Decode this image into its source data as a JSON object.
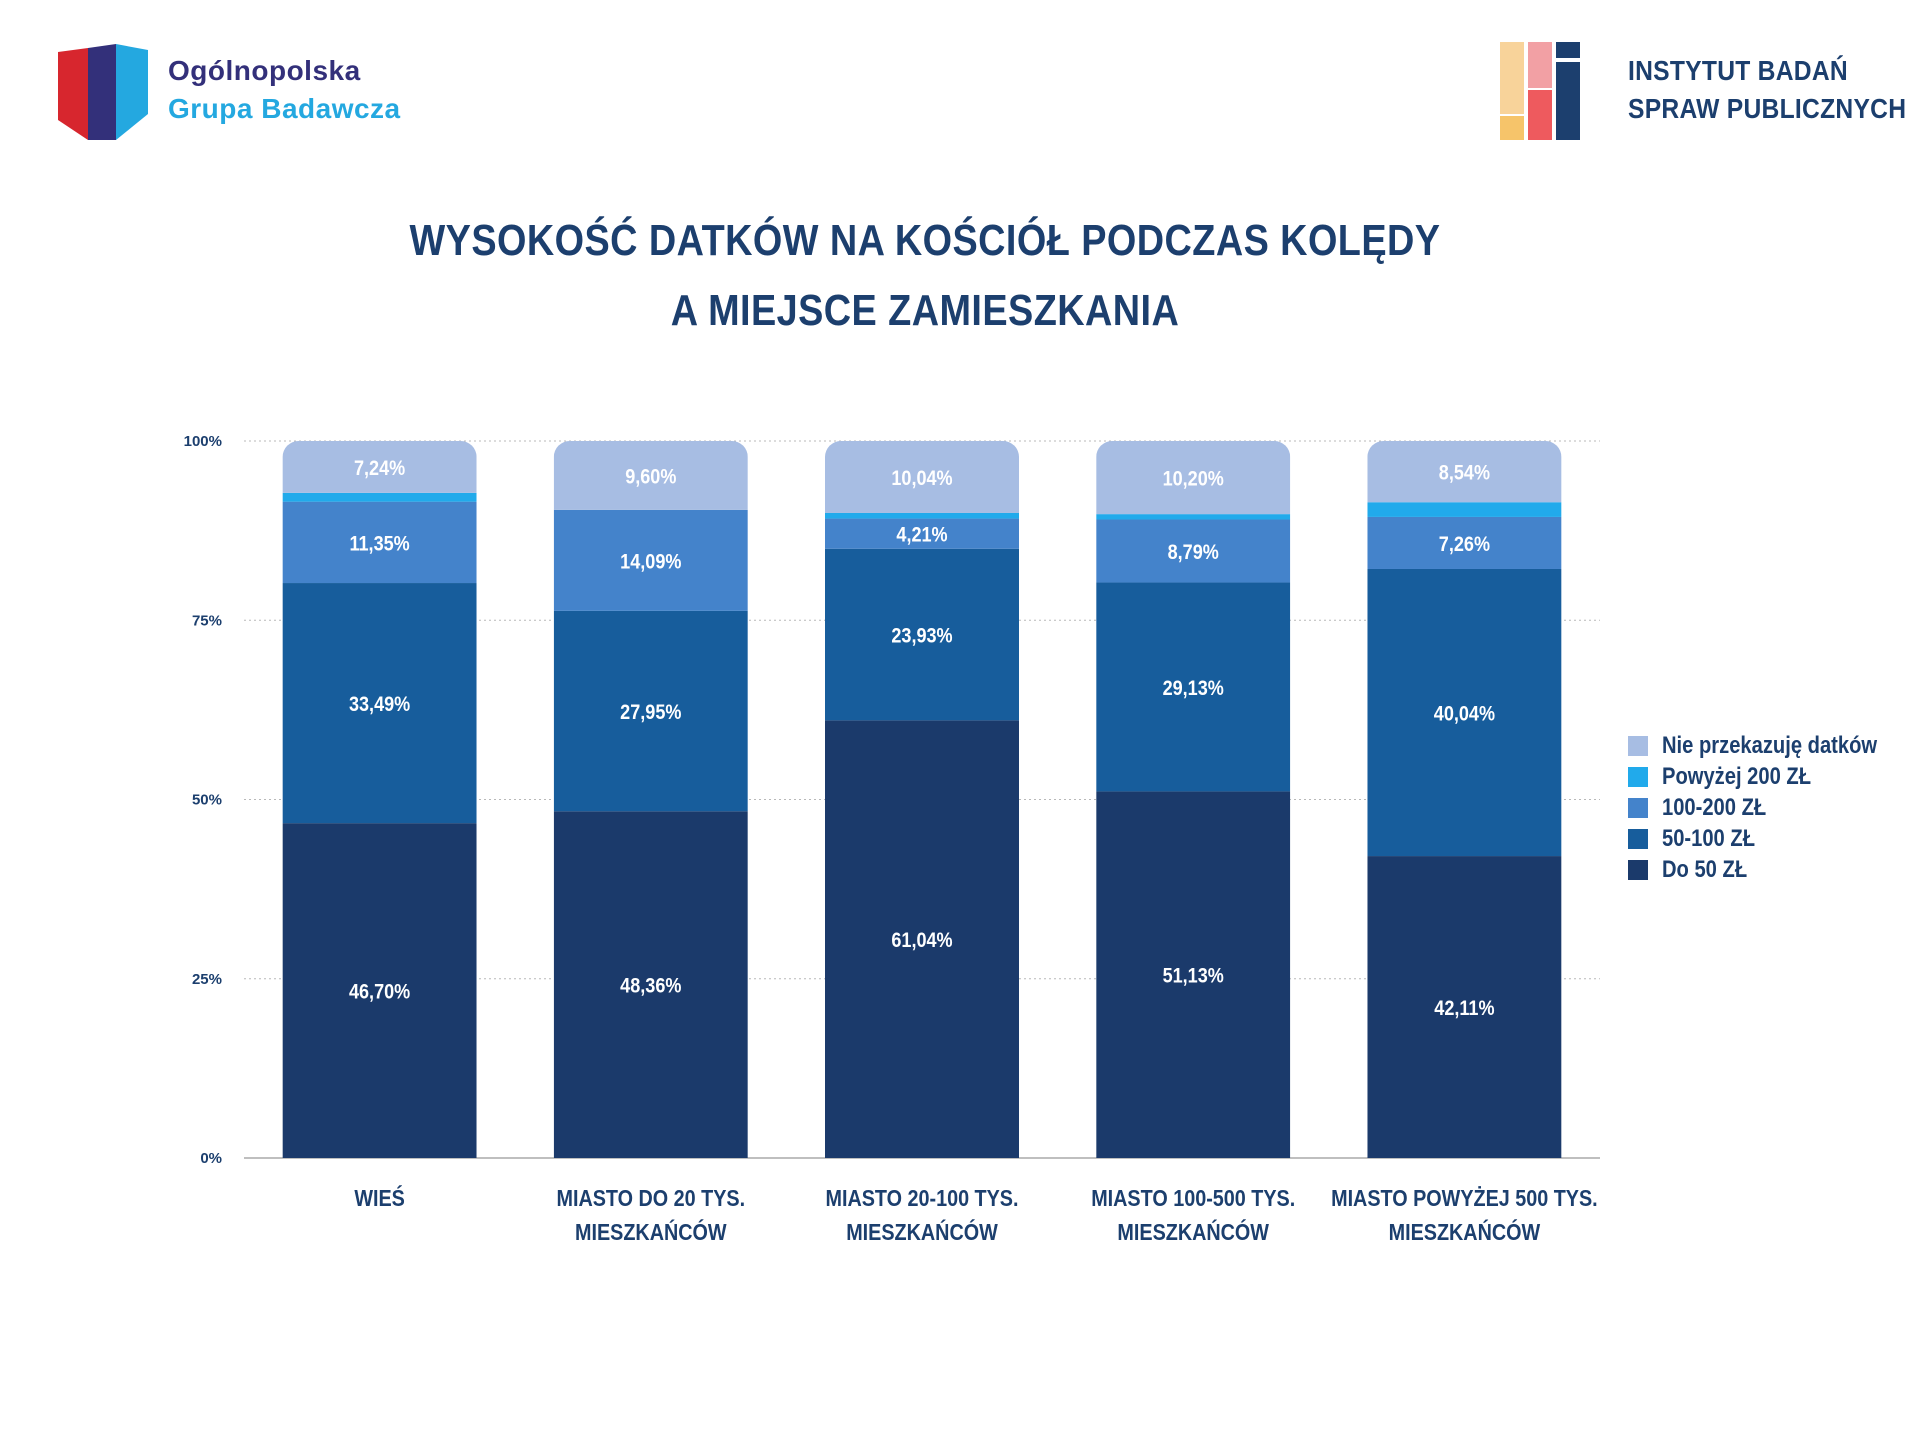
{
  "header": {
    "left_logo": {
      "line1": "Ogólnopolska",
      "line2": "Grupa Badawcza",
      "icon": "shield-logo-icon"
    },
    "right_logo": {
      "line1": "INSTYTUT BADAŃ",
      "line2": "SPRAW PUBLICZNYCH",
      "icon": "tiles-logo-icon"
    }
  },
  "title": {
    "line1": "WYSOKOŚĆ DATKÓW NA KOŚCIÓŁ PODCZAS KOLĘDY",
    "line2": "A MIEJSCE ZAMIESZKANIA"
  },
  "colors": {
    "dark_navy": "#1b3a6b",
    "mid_blue": "#175d9c",
    "steel_blue": "#4483cb",
    "cyan": "#21aaeb",
    "pale_blue": "#a7bde3",
    "text_navy": "#1c3f6e"
  },
  "chart_data": {
    "type": "bar",
    "stacked": true,
    "title": "WYSOKOŚĆ DATKÓW NA KOŚCIÓŁ PODCZAS KOLĘDY A MIEJSCE ZAMIESZKANIA",
    "categories": [
      [
        "WIEŚ"
      ],
      [
        "MIASTO DO 20 TYS.",
        "MIESZKAŃCÓW"
      ],
      [
        "MIASTO 20-100 TYS.",
        "MIESZKAŃCÓW"
      ],
      [
        "MIASTO 100-500 TYS.",
        "MIESZKAŃCÓW"
      ],
      [
        "MIASTO POWYŻEJ 500 TYS.",
        "MIESZKAŃCÓW"
      ]
    ],
    "series": [
      {
        "name": "Do 50 ZŁ",
        "color": "#1b3a6b",
        "values": [
          46.7,
          48.36,
          61.04,
          51.13,
          42.11
        ],
        "labels": [
          "46,70%",
          "48,36%",
          "61,04%",
          "51,13%",
          "42,11%"
        ]
      },
      {
        "name": "50-100 ZŁ",
        "color": "#175d9c",
        "values": [
          33.49,
          27.95,
          23.93,
          29.13,
          40.04
        ],
        "labels": [
          "33,49%",
          "27,95%",
          "23,93%",
          "29,13%",
          "40,04%"
        ]
      },
      {
        "name": "100-200 ZŁ",
        "color": "#4483cb",
        "values": [
          11.35,
          14.09,
          4.21,
          8.79,
          7.26
        ],
        "labels": [
          "11,35%",
          "14,09%",
          "4,21%",
          "8,79%",
          "7,26%"
        ]
      },
      {
        "name": "Powyżej 200 ZŁ",
        "color": "#21aaeb",
        "values": [
          1.22,
          0.0,
          0.78,
          0.75,
          2.05
        ],
        "labels": [
          "",
          "",
          "",
          "",
          ""
        ]
      },
      {
        "name": "Nie przekazuję datków",
        "color": "#a7bde3",
        "values": [
          7.24,
          9.6,
          10.04,
          10.2,
          8.54
        ],
        "labels": [
          "7,24%",
          "9,60%",
          "10,04%",
          "10,20%",
          "8,54%"
        ]
      }
    ],
    "ylim": [
      0,
      100
    ],
    "yticks": [
      0,
      25,
      50,
      75,
      100
    ],
    "ytick_labels": [
      "0%",
      "25%",
      "50%",
      "75%",
      "100%"
    ],
    "grid": true,
    "legend_position": "right",
    "legend_order": [
      "Nie przekazuję datków",
      "Powyżej 200 ZŁ",
      "100-200 ZŁ",
      "50-100 ZŁ",
      "Do 50 ZŁ"
    ]
  }
}
